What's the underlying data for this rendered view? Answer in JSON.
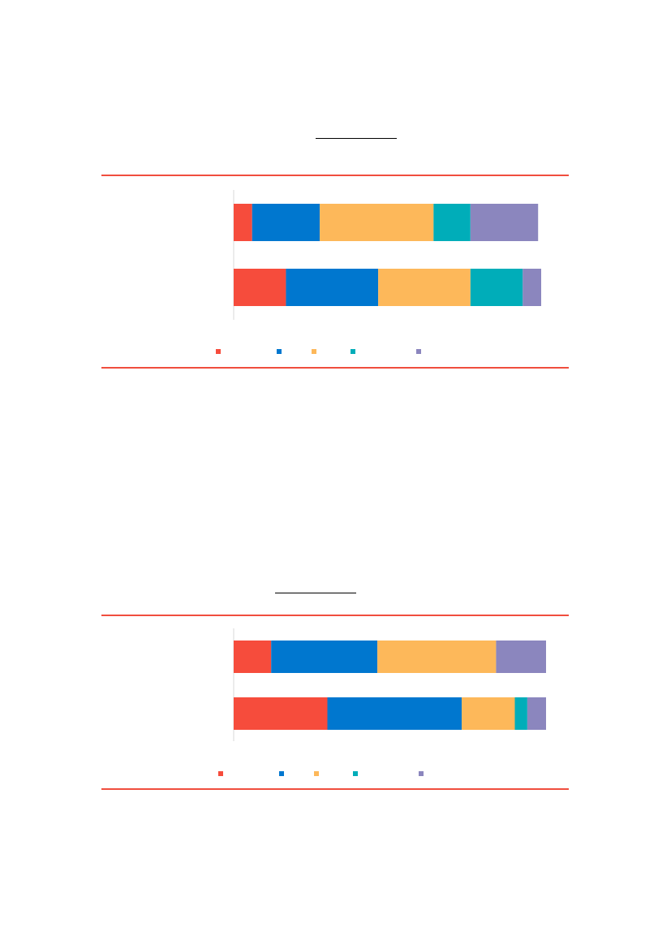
{
  "colors": {
    "rule": "#f04e3e",
    "axis": "#d9d9d9",
    "title_underline": "#000000"
  },
  "chart_data": [
    {
      "type": "bar",
      "orientation": "horizontal",
      "stacked": true,
      "title": "",
      "xlabel": "",
      "ylabel": "",
      "xlim": [
        0,
        100
      ],
      "categories": [
        "",
        ""
      ],
      "series": [
        {
          "name": "",
          "color": "#f64c3c",
          "values": [
            6,
            17
          ]
        },
        {
          "name": "",
          "color": "#0077cf",
          "values": [
            22,
            30
          ]
        },
        {
          "name": "",
          "color": "#fdb85a",
          "values": [
            37,
            30
          ]
        },
        {
          "name": "",
          "color": "#00adb9",
          "values": [
            12,
            17
          ]
        },
        {
          "name": "",
          "color": "#8b86be",
          "values": [
            22,
            6
          ]
        }
      ],
      "grid": false,
      "legend": "bottom"
    },
    {
      "type": "bar",
      "orientation": "horizontal",
      "stacked": true,
      "title": "",
      "xlabel": "",
      "ylabel": "",
      "xlim": [
        0,
        100
      ],
      "categories": [
        "",
        ""
      ],
      "series": [
        {
          "name": "",
          "color": "#f64c3c",
          "values": [
            12,
            30
          ]
        },
        {
          "name": "",
          "color": "#0077cf",
          "values": [
            34,
            43
          ]
        },
        {
          "name": "",
          "color": "#fdb85a",
          "values": [
            38,
            17
          ]
        },
        {
          "name": "",
          "color": "#00adb9",
          "values": [
            0,
            4
          ]
        },
        {
          "name": "",
          "color": "#8b86be",
          "values": [
            16,
            6
          ]
        }
      ],
      "grid": false,
      "legend": "bottom"
    }
  ]
}
